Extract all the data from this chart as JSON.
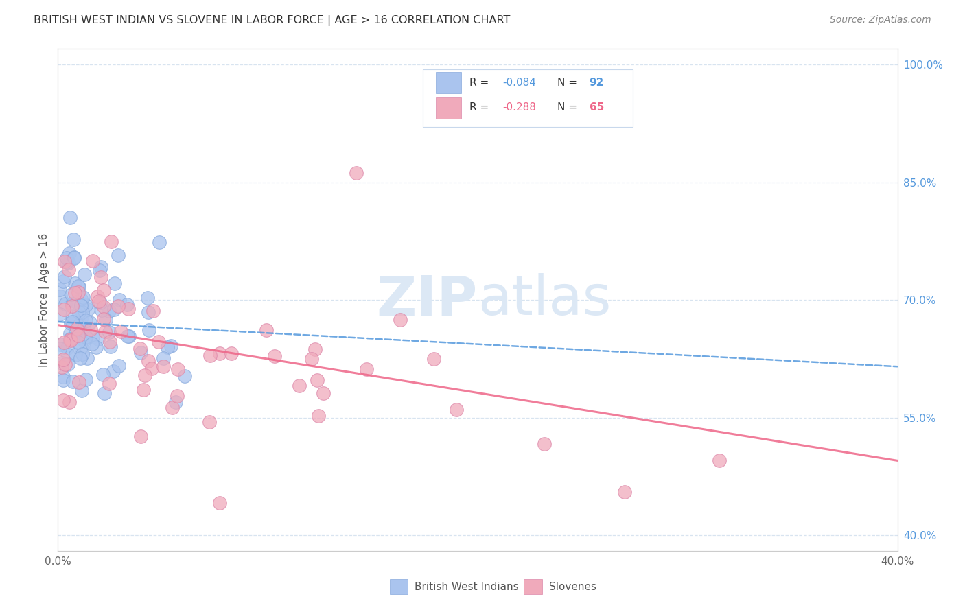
{
  "title": "BRITISH WEST INDIAN VS SLOVENE IN LABOR FORCE | AGE > 16 CORRELATION CHART",
  "source_text": "Source: ZipAtlas.com",
  "ylabel": "In Labor Force | Age > 16",
  "xlim": [
    0.0,
    0.4
  ],
  "ylim": [
    0.38,
    1.02
  ],
  "blue_color": "#aac4ee",
  "blue_edge_color": "#88aadd",
  "pink_color": "#f0aabb",
  "pink_edge_color": "#dd88aa",
  "blue_line_color": "#5599dd",
  "pink_line_color": "#ee6688",
  "watermark_color": "#dce8f5",
  "background_color": "#ffffff",
  "title_color": "#333333",
  "axis_color": "#cccccc",
  "right_tick_color": "#5599dd",
  "grid_color": "#d8e4f0",
  "legend_text_color": "#333333",
  "legend_value_color": "#5599dd",
  "blue_trend_x": [
    0.0,
    0.4
  ],
  "blue_trend_y": [
    0.672,
    0.615
  ],
  "pink_trend_x": [
    0.0,
    0.4
  ],
  "pink_trend_y": [
    0.668,
    0.495
  ],
  "yticks": [
    0.4,
    0.55,
    0.7,
    0.85,
    1.0
  ],
  "ytick_labels": [
    "40.0%",
    "55.0%",
    "70.0%",
    "85.0%",
    "100.0%"
  ],
  "xtick_labels_show": [
    "0.0%",
    "40.0%"
  ],
  "legend_r1": "-0.084",
  "legend_n1": "92",
  "legend_r2": "-0.288",
  "legend_n2": "65",
  "bottom_legend1": "British West Indians",
  "bottom_legend2": "Slovenes"
}
